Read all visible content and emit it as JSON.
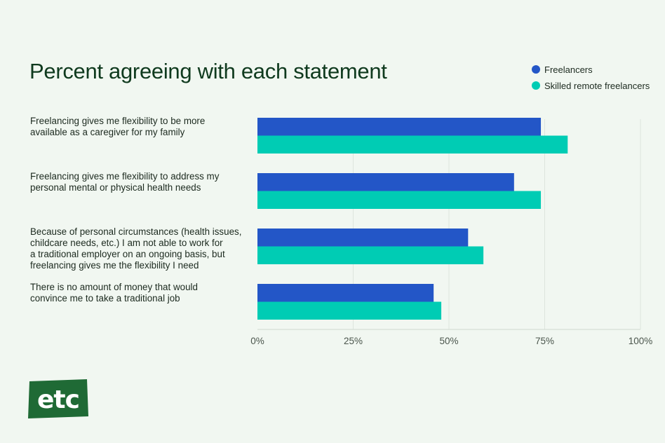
{
  "title": "Percent agreeing with each statement",
  "legend": [
    {
      "label": "Freelancers",
      "color": "#2356c7"
    },
    {
      "label": "Skilled remote freelancers",
      "color": "#00ccb4"
    }
  ],
  "logo": {
    "text": "etc",
    "color": "#1f6a35"
  },
  "chart_data": {
    "type": "bar",
    "orientation": "horizontal",
    "categories": [
      "Freelancing gives me flexibility to be more available as a caregiver for my family",
      "Freelancing gives me flexibility to address my personal mental or physical health needs",
      "Because of personal circumstances (health issues, childcare needs, etc.) I am not able to work for a traditional employer on an ongoing basis, but freelancing gives me the flexibility I need",
      "There is no amount of money that would convince me to take a traditional job"
    ],
    "category_lines": [
      [
        "Freelancing gives me flexibility to be more",
        "available as a caregiver for my family"
      ],
      [
        "Freelancing gives me flexibility to address my",
        "personal mental or physical health needs"
      ],
      [
        "Because of personal circumstances (health issues,",
        "childcare needs, etc.) I am not able to work for",
        "a traditional employer on an ongoing basis, but",
        "freelancing gives me the flexibility I need"
      ],
      [
        "There is no amount of money that would",
        "convince me to take a traditional job"
      ]
    ],
    "series": [
      {
        "name": "Freelancers",
        "color": "#2356c7",
        "values": [
          74,
          67,
          55,
          46
        ]
      },
      {
        "name": "Skilled remote freelancers",
        "color": "#00ccb4",
        "values": [
          81,
          74,
          59,
          48
        ]
      }
    ],
    "xlim": [
      0,
      100
    ],
    "x_ticks": [
      0,
      25,
      50,
      75,
      100
    ],
    "x_tick_labels": [
      "0%",
      "25%",
      "50%",
      "75%",
      "100%"
    ],
    "grid": true,
    "legend_position": "top-right"
  }
}
